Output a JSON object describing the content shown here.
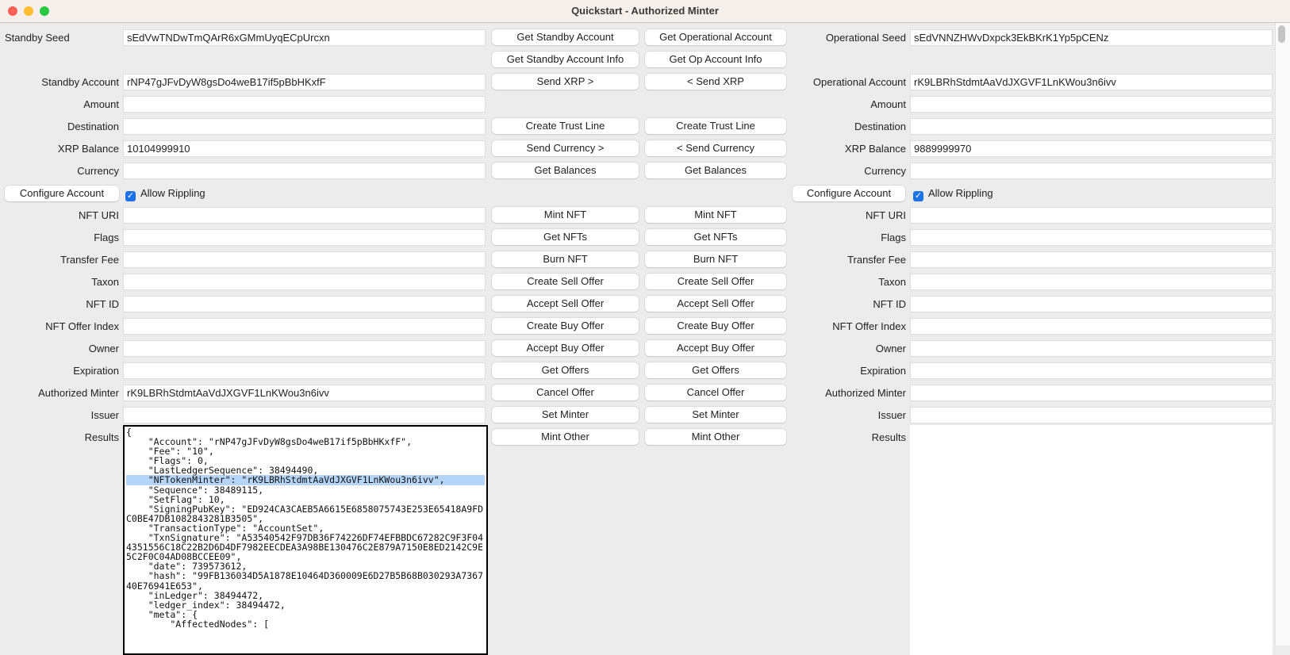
{
  "window": {
    "title": "Quickstart - Authorized Minter"
  },
  "standby": {
    "fields": [
      {
        "label": "Standby Seed",
        "value": "sEdVwTNDwTmQArR6xGMmUyqECpUrcxn"
      },
      {
        "label": "Standby Account",
        "value": "rNP47gJFvDyW8gsDo4weB17if5pBbHKxfF"
      },
      {
        "label": "Amount",
        "value": ""
      },
      {
        "label": "Destination",
        "value": ""
      },
      {
        "label": "XRP Balance",
        "value": "10104999910"
      },
      {
        "label": "Currency",
        "value": ""
      },
      {
        "label": "NFT URI",
        "value": ""
      },
      {
        "label": "Flags",
        "value": ""
      },
      {
        "label": "Transfer Fee",
        "value": ""
      },
      {
        "label": "Taxon",
        "value": ""
      },
      {
        "label": "NFT ID",
        "value": ""
      },
      {
        "label": "NFT Offer Index",
        "value": ""
      },
      {
        "label": "Owner",
        "value": ""
      },
      {
        "label": "Expiration",
        "value": ""
      },
      {
        "label": "Authorized Minter",
        "value": "rK9LBRhStdmtAaVdJXGVF1LnKWou3n6ivv"
      },
      {
        "label": "Issuer",
        "value": ""
      }
    ],
    "configure_label": "Configure Account",
    "allow_rippling_label": "Allow Rippling",
    "allow_rippling_checked": true,
    "results_label": "Results",
    "results_lines": [
      "{",
      "    \"Account\": \"rNP47gJFvDyW8gsDo4weB17if5pBbHKxfF\",",
      "    \"Fee\": \"10\",",
      "    \"Flags\": 0,",
      "    \"LastLedgerSequence\": 38494490,",
      "    \"NFTokenMinter\": \"rK9LBRhStdmtAaVdJXGVF1LnKWou3n6ivv\",",
      "    \"Sequence\": 38489115,",
      "    \"SetFlag\": 10,",
      "    \"SigningPubKey\": \"ED924CA3CAEB5A6615E6858075743E253E65418A9FD",
      "C0BE47DB1082843281B3505\",",
      "    \"TransactionType\": \"AccountSet\",",
      "    \"TxnSignature\": \"A53540542F97DB36F74226DF74EFBBDC67282C9F3F04",
      "4351556C18C22B2D6D4DF7982EECDEA3A98BE130476C2E879A7150E8ED2142C9E",
      "5C2F0C04AD08BCCEE09\",",
      "    \"date\": 739573612,",
      "    \"hash\": \"99FB136034D5A1878E10464D360009E6D27B5B68B030293A7367",
      "40E76941E653\",",
      "    \"inLedger\": 38494472,",
      "    \"ledger_index\": 38494472,",
      "    \"meta\": {",
      "        \"AffectedNodes\": ["
    ],
    "highlighted_line": 5
  },
  "operational": {
    "fields": [
      {
        "label": "Operational Seed",
        "value": "sEdVNNZHWvDxpck3EkBKrK1Yp5pCENz"
      },
      {
        "label": "Operational Account",
        "value": "rK9LBRhStdmtAaVdJXGVF1LnKWou3n6ivv"
      },
      {
        "label": "Amount",
        "value": ""
      },
      {
        "label": "Destination",
        "value": ""
      },
      {
        "label": "XRP Balance",
        "value": "9889999970"
      },
      {
        "label": "Currency",
        "value": ""
      },
      {
        "label": "NFT URI",
        "value": ""
      },
      {
        "label": "Flags",
        "value": ""
      },
      {
        "label": "Transfer Fee",
        "value": ""
      },
      {
        "label": "Taxon",
        "value": ""
      },
      {
        "label": "NFT ID",
        "value": ""
      },
      {
        "label": "NFT Offer Index",
        "value": ""
      },
      {
        "label": "Owner",
        "value": ""
      },
      {
        "label": "Expiration",
        "value": ""
      },
      {
        "label": "Authorized Minter",
        "value": ""
      },
      {
        "label": "Issuer",
        "value": ""
      }
    ],
    "configure_label": "Configure Account",
    "allow_rippling_label": "Allow Rippling",
    "allow_rippling_checked": true,
    "results_label": "Results"
  },
  "buttons_standby": [
    "Get Standby Account",
    "Get Standby Account Info",
    "Send XRP >",
    "Create Trust Line",
    "Send Currency >",
    "Get Balances",
    "Mint NFT",
    "Get NFTs",
    "Burn NFT",
    "Create Sell Offer",
    "Accept Sell Offer",
    "Create Buy Offer",
    "Accept Buy Offer",
    "Get Offers",
    "Cancel Offer",
    "Set Minter",
    "Mint Other"
  ],
  "buttons_operational": [
    "Get Operational Account",
    "Get Op Account Info",
    "< Send XRP",
    "Create Trust Line",
    "< Send Currency",
    "Get Balances",
    "Mint NFT",
    "Get NFTs",
    "Burn NFT",
    "Create Sell Offer",
    "Accept Sell Offer",
    "Create Buy Offer",
    "Accept Buy Offer",
    "Get Offers",
    "Cancel Offer",
    "Set Minter",
    "Mint Other"
  ],
  "colors": {
    "accent": "#1a73e8",
    "highlight": "#b5d5f8"
  }
}
